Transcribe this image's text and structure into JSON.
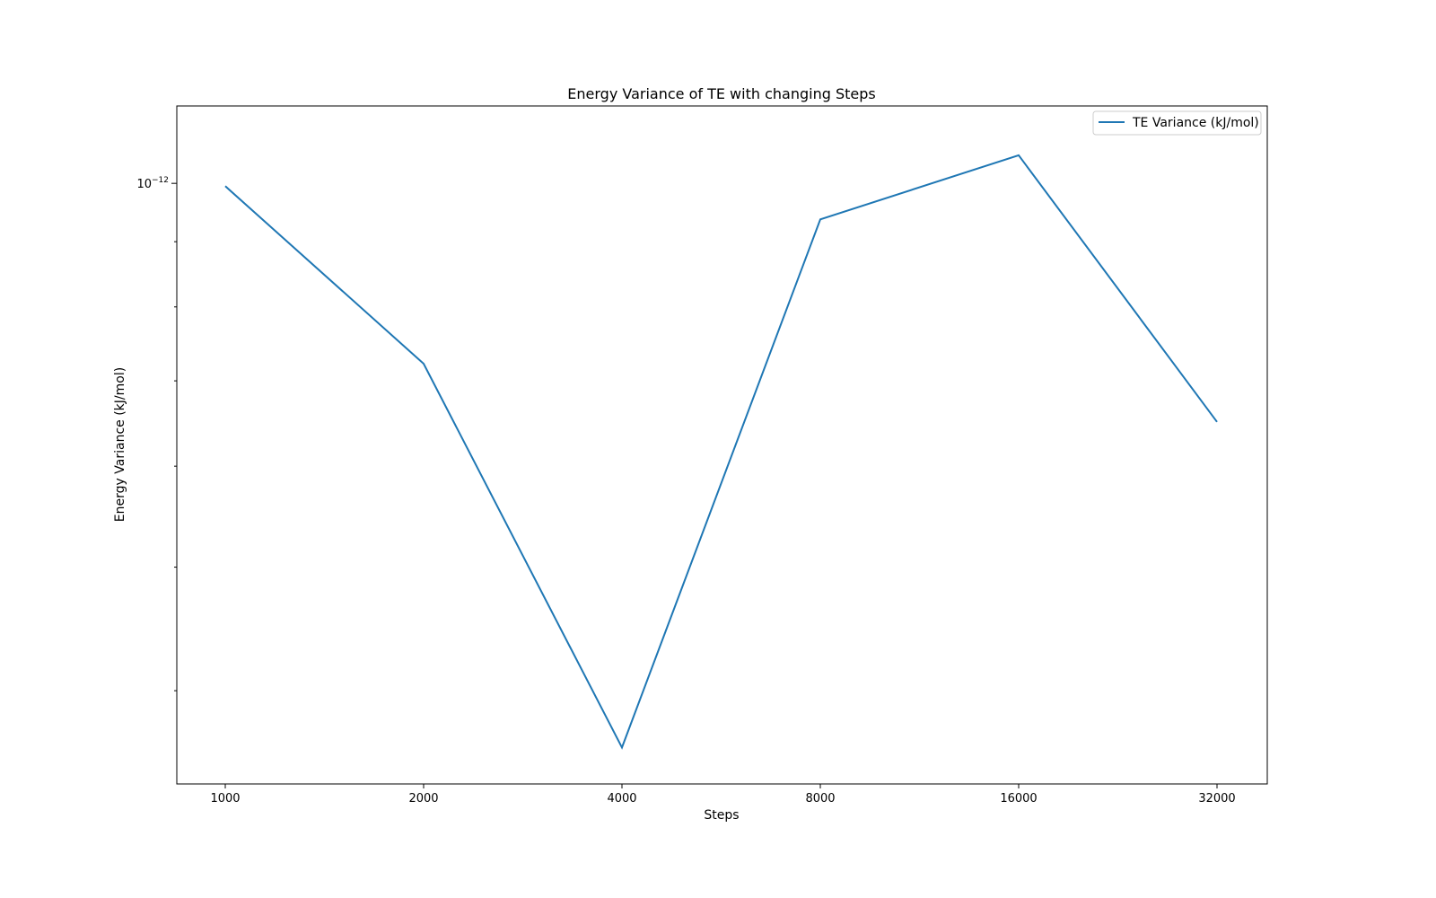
{
  "chart_data": {
    "type": "line",
    "title": "Energy Variance of TE with changing Steps",
    "xlabel": "Steps",
    "ylabel": "Energy Variance (kJ/mol)",
    "x_scale": "log2",
    "y_scale": "log",
    "categories": [
      "1000",
      "2000",
      "4000",
      "8000",
      "16000",
      "32000"
    ],
    "x": [
      1000,
      2000,
      4000,
      8000,
      16000,
      32000
    ],
    "series": [
      {
        "name": "TE Variance (kJ/mol)",
        "color": "#1f77b4",
        "values": [
          9.95e-13,
          7.22e-13,
          3.61e-13,
          9.37e-13,
          1.052e-12,
          6.5e-13
        ]
      }
    ],
    "ylim": [
      3.38e-13,
      1.15e-12
    ],
    "y_major_tick_label": {
      "base": "10",
      "exponent": "−12"
    },
    "y_major_tick_value": 1e-12,
    "y_minor_tick_values": [
      4e-13,
      5e-13,
      6e-13,
      7e-13,
      8e-13,
      9e-13
    ],
    "legend_position": "top-right",
    "grid": false
  }
}
